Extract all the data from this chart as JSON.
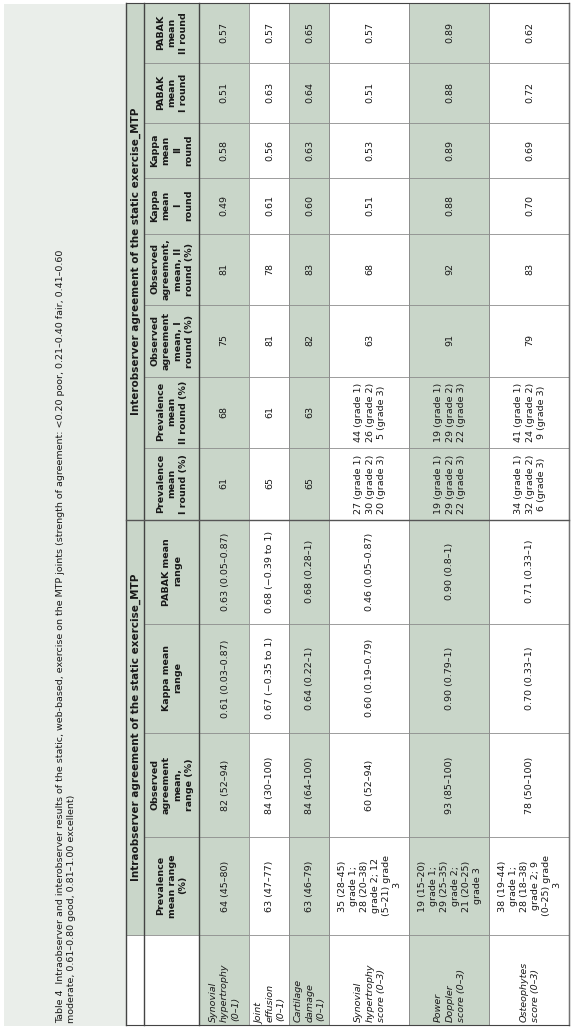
{
  "title_line1": "Table 4  Intraobserver and interobserver results of the static, web-based, exercise on the MTP joints (strength of agreement: <0.20 poor, 0.21–0.40 fair, 0.41–0.60",
  "title_line2": "moderate, 0.61–0.80 good, 0.81–1.00 excellent)",
  "intra_label": "Intraobserver agreement of the static exercise_MTP",
  "inter_label": "Interobserver agreement of the static exercise_MTP",
  "headers": [
    "Prevalence\nmean range\n(%)",
    "Observed\nagreement\nmean,\nrange (%)",
    "Kappa mean\nrange",
    "PABAK mean\nrange",
    "Prevalence\nmean\nI round (%)",
    "Prevalence\nmean\nII round (%)",
    "Observed\nagreement\nmean, I\nround (%)",
    "Observed\nagreement,\nmean, II\nround (%)",
    "Kappa\nmean\nI\nround",
    "Kappa\nmean\nII\nround",
    "PABAK\nmean\nI round",
    "PABAK\nmean\nII round"
  ],
  "row_labels": [
    "Synovial\nhypertrophy\n(0–1)",
    "Joint\neffusion\n(0–1)",
    "Cartilage\ndamage\n(0–1)",
    "Synovial\nhypertrophy\nscore (0–3)",
    "Power\nDoppler\nscore (0–3)",
    "Osteophytes\nscore (0–3)"
  ],
  "data": [
    [
      "64 (45–80)",
      "82 (52–94)",
      "0.61 (0.03–0.87)",
      "0.63 (0.05–0.87)",
      "61",
      "68",
      "75",
      "81",
      "0.49",
      "0.58",
      "0.51",
      "0.57"
    ],
    [
      "63 (47–77)",
      "84 (30–100)",
      "0.67 (−0.35 to 1)",
      "0.68 (−0.39 to 1)",
      "65",
      "61",
      "81",
      "78",
      "0.61",
      "0.56",
      "0.63",
      "0.57"
    ],
    [
      "63 (46–79)",
      "84 (64–100)",
      "0.64 (0.22–1)",
      "0.68 (0.28–1)",
      "65",
      "63",
      "82",
      "83",
      "0.60",
      "0.63",
      "0.64",
      "0.65"
    ],
    [
      "35 (28–45)\ngrade 1;\n28 (20–38)\ngrade 2; 12\n(5–21) grade\n3",
      "60 (52–94)",
      "0.60 (0.19–0.79)",
      "0.46 (0.05–0.87)",
      "27 (grade 1)\n30 (grade 2)\n20 (grade 3)",
      "44 (grade 1)\n26 (grade 2)\n5 (grade 3)",
      "63",
      "68",
      "0.51",
      "0.53",
      "0.51",
      "0.57"
    ],
    [
      "19 (15–20)\ngrade 1;\n29 (25–35)\ngrade 2;\n21 (20–25)\ngrade 3",
      "93 (85–100)",
      "0.90 (0.79–1)",
      "0.90 (0.8–1)",
      "19 (grade 1)\n29 (grade 2)\n22 (grade 3)",
      "19 (grade 1)\n29 (grade 2)\n22 (grade 3)",
      "91",
      "92",
      "0.88",
      "0.89",
      "0.88",
      "0.89"
    ],
    [
      "38 (19–44)\ngrade 1;\n28 (18–38)\ngrade 2; 9\n(0–25) grade\n3",
      "78 (50–100)",
      "0.70 (0.33–1)",
      "0.71 (0.33–1)",
      "34 (grade 1)\n32 (grade 2)\n6 (grade 3)",
      "41 (grade 1)\n24 (grade 2)\n9 (grade 3)",
      "79",
      "83",
      "0.70",
      "0.69",
      "0.72",
      "0.62"
    ]
  ],
  "shaded_rows": [
    0,
    2,
    4
  ],
  "bg_color": "#ffffff",
  "shade_color": "#c9d6c9",
  "text_color": "#1a1a1a",
  "border_color": "#555555",
  "font_size": 7.0
}
